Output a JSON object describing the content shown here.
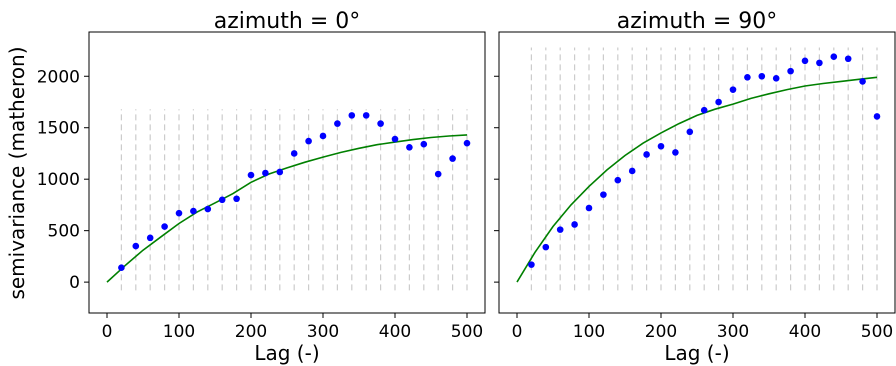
{
  "chart_data": [
    {
      "type": "scatter",
      "title": "azimuth = 0°",
      "xlabel": "Lag (-)",
      "ylabel": "semivariance (matheron)",
      "xlim": [
        -25,
        525
      ],
      "ylim": [
        -300,
        2430
      ],
      "xticks": [
        0,
        100,
        200,
        300,
        400,
        500
      ],
      "yticks": [
        0,
        500,
        1000,
        1500,
        2000
      ],
      "grid": false,
      "bin_lines_x": [
        20,
        40,
        60,
        80,
        100,
        120,
        140,
        160,
        180,
        200,
        220,
        240,
        260,
        280,
        300,
        320,
        340,
        360,
        380,
        400,
        420,
        440,
        460,
        480,
        500
      ],
      "bin_lines_y": [
        -80,
        1680
      ],
      "series": [
        {
          "kind": "points",
          "color": "#0000ff",
          "x": [
            20,
            40,
            60,
            80,
            100,
            120,
            140,
            160,
            180,
            200,
            220,
            240,
            260,
            280,
            300,
            320,
            340,
            360,
            380,
            400,
            420,
            440,
            460,
            480,
            500
          ],
          "y": [
            140,
            350,
            430,
            540,
            670,
            690,
            710,
            800,
            810,
            1040,
            1060,
            1070,
            1250,
            1370,
            1420,
            1540,
            1620,
            1620,
            1540,
            1390,
            1310,
            1340,
            1050,
            1200,
            1350
          ]
        },
        {
          "kind": "line",
          "color": "#008000",
          "x": [
            0,
            25,
            50,
            75,
            100,
            125,
            150,
            175,
            200,
            225,
            250,
            275,
            300,
            325,
            350,
            375,
            400,
            425,
            450,
            475,
            500
          ],
          "y": [
            0,
            160,
            310,
            440,
            570,
            680,
            770,
            860,
            970,
            1050,
            1110,
            1165,
            1215,
            1260,
            1300,
            1335,
            1360,
            1385,
            1405,
            1420,
            1430
          ]
        }
      ]
    },
    {
      "type": "scatter",
      "title": "azimuth = 90°",
      "xlabel": "Lag (-)",
      "ylabel": "",
      "xlim": [
        -25,
        525
      ],
      "ylim": [
        -300,
        2430
      ],
      "xticks": [
        0,
        100,
        200,
        300,
        400,
        500
      ],
      "yticks": [
        0,
        500,
        1000,
        1500,
        2000
      ],
      "show_ytick_labels": false,
      "grid": false,
      "bin_lines_x": [
        20,
        40,
        60,
        80,
        100,
        120,
        140,
        160,
        180,
        200,
        220,
        240,
        260,
        280,
        300,
        320,
        340,
        360,
        380,
        400,
        420,
        440,
        460,
        480,
        500
      ],
      "bin_lines_y": [
        -80,
        2280
      ],
      "series": [
        {
          "kind": "points",
          "color": "#0000ff",
          "x": [
            20,
            40,
            60,
            80,
            100,
            120,
            140,
            160,
            180,
            200,
            220,
            240,
            260,
            280,
            300,
            320,
            340,
            360,
            380,
            400,
            420,
            440,
            460,
            480,
            500
          ],
          "y": [
            170,
            340,
            510,
            560,
            720,
            850,
            990,
            1080,
            1240,
            1320,
            1260,
            1460,
            1670,
            1750,
            1870,
            1990,
            2000,
            1980,
            2050,
            2150,
            2130,
            2190,
            2170,
            1950,
            1610
          ]
        },
        {
          "kind": "line",
          "color": "#008000",
          "x": [
            0,
            25,
            50,
            75,
            100,
            125,
            150,
            175,
            200,
            225,
            250,
            275,
            300,
            325,
            350,
            375,
            400,
            425,
            450,
            475,
            500
          ],
          "y": [
            0,
            290,
            540,
            750,
            930,
            1090,
            1230,
            1350,
            1450,
            1540,
            1620,
            1680,
            1730,
            1785,
            1830,
            1870,
            1905,
            1930,
            1950,
            1970,
            1990
          ]
        }
      ]
    }
  ]
}
